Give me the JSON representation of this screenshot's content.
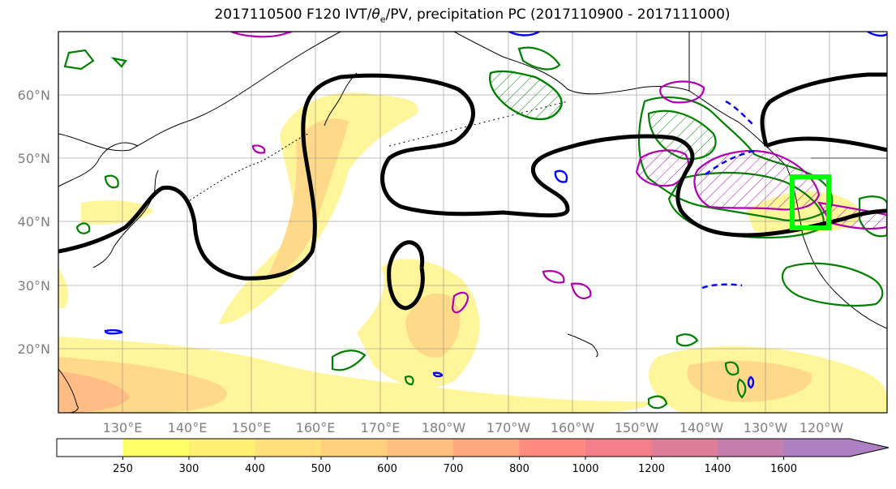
{
  "title": {
    "prefix": "2017110500 F120 IVT/",
    "theta": "θ",
    "sub": "e",
    "suffix": "/PV, precipitation PC (2017110900 - 2017111000)"
  },
  "chart_data": {
    "type": "map-contour",
    "lat_ticks": [
      "20°N",
      "30°N",
      "40°N",
      "50°N",
      "60°N"
    ],
    "lon_ticks": [
      "130°E",
      "140°E",
      "150°E",
      "160°E",
      "170°E",
      "180°W",
      "170°W",
      "160°W",
      "150°W",
      "140°W",
      "130°W",
      "120°W"
    ],
    "colorbar": {
      "levels": [
        "250",
        "300",
        "400",
        "500",
        "600",
        "700",
        "800",
        "1000",
        "1200",
        "1400",
        "1600"
      ],
      "colors": [
        "#ffff66",
        "#fff073",
        "#ffe07a",
        "#ffd07e",
        "#ffbf80",
        "#ffa880",
        "#ff8b80",
        "#f47f8a",
        "#dd7f99",
        "#c47faf",
        "#ad7fc3"
      ],
      "extend": "max"
    },
    "contour_colors": {
      "pv": "#000000",
      "theta_e": "#008000",
      "precip_pos": "#b000b0",
      "precip_neg": "#0000ff",
      "target_box": "#00ff00"
    }
  }
}
